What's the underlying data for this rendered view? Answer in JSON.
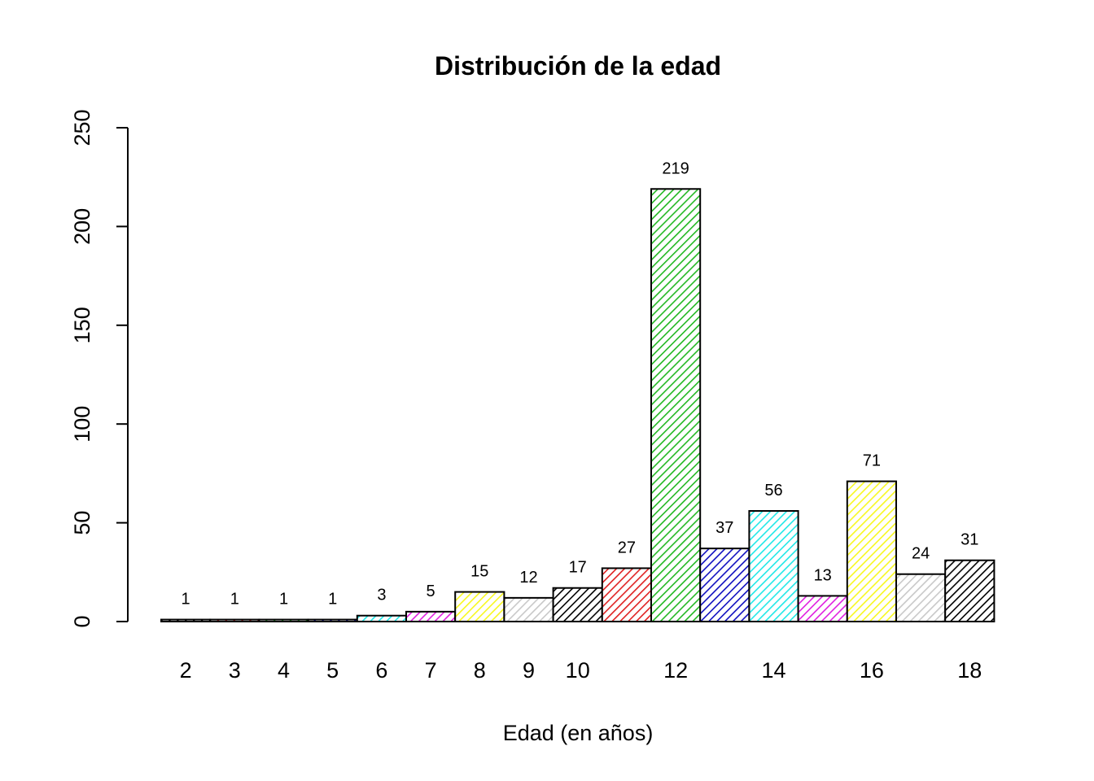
{
  "chart_data": {
    "type": "bar",
    "title": "Distribución de la edad",
    "xlabel": "Edad (en años)",
    "ylabel": "",
    "ylim": [
      0,
      250
    ],
    "yticks": [
      0,
      50,
      100,
      150,
      200,
      250
    ],
    "categories": [
      "2",
      "3",
      "4",
      "5",
      "6",
      "7",
      "8",
      "9",
      "10",
      "11",
      "12",
      "13",
      "14",
      "15",
      "16",
      "17",
      "18"
    ],
    "x_tick_labels": [
      "2",
      "3",
      "4",
      "5",
      "6",
      "7",
      "8",
      "9",
      "10",
      "",
      "12",
      "",
      "14",
      "",
      "16",
      "",
      "18"
    ],
    "values": [
      1,
      1,
      1,
      1,
      3,
      5,
      15,
      12,
      17,
      27,
      219,
      37,
      56,
      13,
      71,
      24,
      31
    ],
    "colors": [
      "#000000",
      "#DF536B",
      "#61D04F",
      "#2297E6",
      "#28E2E5",
      "#CD0BBC",
      "#F5C710",
      "#9E9E9E",
      "#000000",
      "#DF536B",
      "#61D04F",
      "#2297E6",
      "#28E2E5",
      "#CD0BBC",
      "#F5C710",
      "#9E9E9E",
      "#000000"
    ],
    "bar_fill_colors": [
      "#000000",
      "#DF2020",
      "#22B822",
      "#1010C0",
      "#20E8E8",
      "#E020E0",
      "#F8F820",
      "#C8C8C8",
      "#000000",
      "#DF2020",
      "#22B822",
      "#1010C0",
      "#20E8E8",
      "#E020E0",
      "#F8F820",
      "#C8C8C8",
      "#000000"
    ],
    "fill_style": "hatched",
    "grid": false,
    "legend": "none"
  }
}
